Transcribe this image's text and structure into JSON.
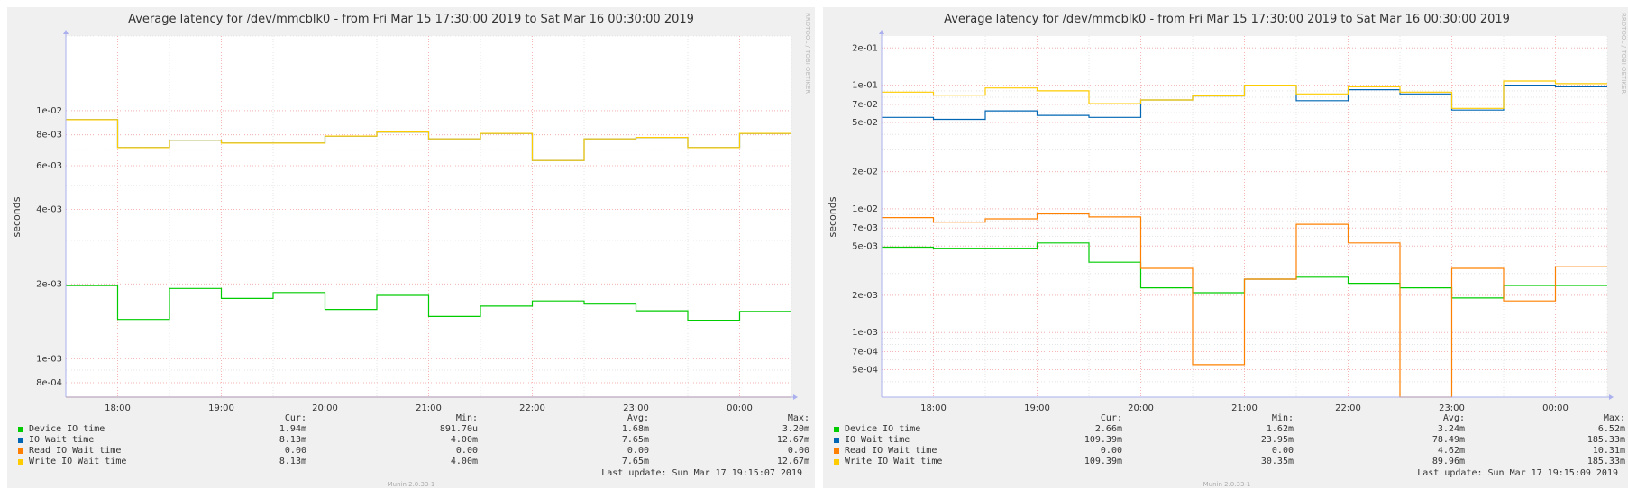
{
  "legend_headers": [
    "Cur:",
    "Min:",
    "Avg:",
    "Max:"
  ],
  "chart_data": [
    {
      "type": "line",
      "title": "Average latency for /dev/mmcblk0 - from Fri Mar 15 17:30:00 2019 to Sat Mar 16 00:30:00 2019",
      "ylabel": "seconds",
      "yscale": "log",
      "ylim": [
        0.0007,
        0.02
      ],
      "y_ticks": [
        {
          "v": 0.01,
          "label": "1e-02"
        },
        {
          "v": 0.008,
          "label": "8e-03"
        },
        {
          "v": 0.006,
          "label": "6e-03"
        },
        {
          "v": 0.004,
          "label": "4e-03"
        },
        {
          "v": 0.002,
          "label": "2e-03"
        },
        {
          "v": 0.001,
          "label": "1e-03"
        },
        {
          "v": 0.0008,
          "label": "8e-04"
        }
      ],
      "x_ticks": [
        "18:00",
        "19:00",
        "20:00",
        "21:00",
        "22:00",
        "23:00",
        "00:00"
      ],
      "watermark": "RRDTOOL / TOBI OETIKER",
      "grid": true,
      "x": [
        "17:30",
        "18:00",
        "18:30",
        "19:00",
        "19:30",
        "20:00",
        "20:30",
        "21:00",
        "21:30",
        "22:00",
        "22:30",
        "23:00",
        "23:30",
        "00:00"
      ],
      "series": [
        {
          "name": "Device IO time",
          "color": "#00cc00",
          "values": [
            0.00197,
            0.00144,
            0.00192,
            0.00175,
            0.00185,
            0.00158,
            0.0018,
            0.00148,
            0.00163,
            0.00171,
            0.00166,
            0.00156,
            0.00143,
            0.00155
          ],
          "cur": "1.94m",
          "min": "891.70u",
          "avg": "1.68m",
          "max": "3.20m"
        },
        {
          "name": "IO Wait time",
          "color": "#0066b3",
          "values": [
            0.0092,
            0.0071,
            0.0076,
            0.0074,
            0.0074,
            0.0079,
            0.0082,
            0.0077,
            0.0081,
            0.0063,
            0.0077,
            0.0078,
            0.0071,
            0.0081
          ],
          "cur": "8.13m",
          "min": "4.00m",
          "avg": "7.65m",
          "max": "12.67m"
        },
        {
          "name": "Read IO Wait time",
          "color": "#ff8000",
          "values": [
            0.0006,
            0.0006,
            0.0006,
            0.0006,
            0.0006,
            0.0006,
            0.0006,
            0.0006,
            0.0006,
            0.0006,
            0.0006,
            0.0006,
            0.0006,
            0.0006
          ],
          "cur": "0.00",
          "min": "0.00",
          "avg": "0.00",
          "max": "0.00"
        },
        {
          "name": "Write IO Wait time",
          "color": "#ffcc00",
          "values": [
            0.0092,
            0.0071,
            0.0076,
            0.0074,
            0.0074,
            0.0079,
            0.0082,
            0.0077,
            0.0081,
            0.0063,
            0.0077,
            0.0078,
            0.0071,
            0.0081
          ],
          "cur": "8.13m",
          "min": "4.00m",
          "avg": "7.65m",
          "max": "12.67m"
        }
      ],
      "last_update": "Last update:  Sun Mar 17 19:15:07 2019",
      "footer": "Munin 2.0.33-1"
    },
    {
      "type": "line",
      "title": "Average latency for /dev/mmcblk0 - from Fri Mar 15 17:30:00 2019 to Sat Mar 16 00:30:00 2019",
      "ylabel": "seconds",
      "yscale": "log",
      "ylim": [
        0.0003,
        0.25
      ],
      "y_ticks": [
        {
          "v": 0.2,
          "label": "2e-01"
        },
        {
          "v": 0.1,
          "label": "1e-01"
        },
        {
          "v": 0.07,
          "label": "7e-02"
        },
        {
          "v": 0.05,
          "label": "5e-02"
        },
        {
          "v": 0.02,
          "label": "2e-02"
        },
        {
          "v": 0.01,
          "label": "1e-02"
        },
        {
          "v": 0.007,
          "label": "7e-03"
        },
        {
          "v": 0.005,
          "label": "5e-03"
        },
        {
          "v": 0.002,
          "label": "2e-03"
        },
        {
          "v": 0.001,
          "label": "1e-03"
        },
        {
          "v": 0.0007,
          "label": "7e-04"
        },
        {
          "v": 0.0005,
          "label": "5e-04"
        }
      ],
      "x_ticks": [
        "18:00",
        "19:00",
        "20:00",
        "21:00",
        "22:00",
        "23:00",
        "00:00"
      ],
      "watermark": "RRDTOOL / TOBI OETIKER",
      "grid": true,
      "x": [
        "17:30",
        "18:00",
        "18:30",
        "19:00",
        "19:30",
        "20:00",
        "20:30",
        "21:00",
        "21:30",
        "22:00",
        "22:30",
        "23:00",
        "23:30",
        "00:00"
      ],
      "series": [
        {
          "name": "Device IO time",
          "color": "#00cc00",
          "values": [
            0.0049,
            0.0048,
            0.0048,
            0.0053,
            0.0037,
            0.0023,
            0.0021,
            0.0027,
            0.0028,
            0.0025,
            0.0023,
            0.0019,
            0.0024,
            0.0024
          ],
          "cur": "2.66m",
          "min": "1.62m",
          "avg": "3.24m",
          "max": "6.52m"
        },
        {
          "name": "IO Wait time",
          "color": "#0066b3",
          "values": [
            0.055,
            0.053,
            0.062,
            0.057,
            0.055,
            0.076,
            0.082,
            0.1,
            0.075,
            0.092,
            0.085,
            0.063,
            0.1,
            0.097
          ],
          "cur": "109.39m",
          "min": "23.95m",
          "avg": "78.49m",
          "max": "185.33m"
        },
        {
          "name": "Read IO Wait time",
          "color": "#ff8000",
          "values": [
            0.0085,
            0.0078,
            0.0083,
            0.0091,
            0.0086,
            0.0033,
            0.00055,
            0.0027,
            0.0075,
            0.0053,
            0.0003,
            0.0033,
            0.0018,
            0.0034
          ],
          "cur": "0.00",
          "min": "0.00",
          "avg": "4.62m",
          "max": "10.31m"
        },
        {
          "name": "Write IO Wait time",
          "color": "#ffcc00",
          "values": [
            0.088,
            0.083,
            0.095,
            0.09,
            0.071,
            0.076,
            0.082,
            0.1,
            0.085,
            0.097,
            0.088,
            0.065,
            0.108,
            0.103
          ],
          "cur": "109.39m",
          "min": "30.35m",
          "avg": "89.96m",
          "max": "185.33m"
        }
      ],
      "last_update": "Last update:  Sun Mar 17 19:15:09 2019",
      "footer": "Munin 2.0.33-1"
    }
  ]
}
